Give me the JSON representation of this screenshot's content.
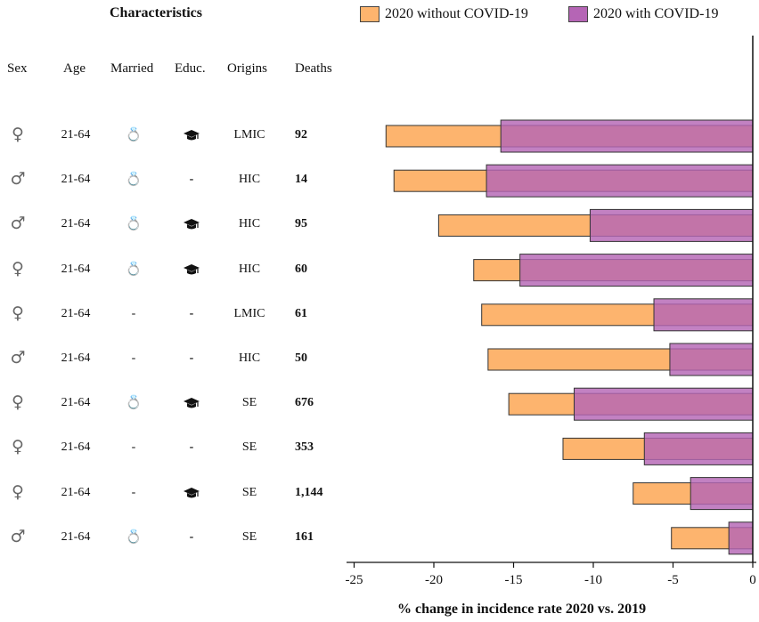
{
  "header": {
    "title": "Characteristics"
  },
  "columns": {
    "sex": "Sex",
    "age": "Age",
    "married": "Married",
    "educ": "Educ.",
    "origins": "Origins",
    "deaths": "Deaths"
  },
  "icons": {
    "female": "female-symbol-icon",
    "male": "male-symbol-icon",
    "married": "ring-icon",
    "educ": "graduation-cap-icon"
  },
  "rows": [
    {
      "sex": "♀",
      "sex_icon": "female-symbol-icon",
      "age": "21-64",
      "married": true,
      "educ": true,
      "origins": "LMIC",
      "deaths": "92"
    },
    {
      "sex": "♂",
      "sex_icon": "male-symbol-icon",
      "age": "21-64",
      "married": true,
      "educ": false,
      "origins": "HIC",
      "deaths": "14"
    },
    {
      "sex": "♂",
      "sex_icon": "male-symbol-icon",
      "age": "21-64",
      "married": true,
      "educ": true,
      "origins": "HIC",
      "deaths": "95"
    },
    {
      "sex": "♀",
      "sex_icon": "female-symbol-icon",
      "age": "21-64",
      "married": true,
      "educ": true,
      "origins": "HIC",
      "deaths": "60"
    },
    {
      "sex": "♀",
      "sex_icon": "female-symbol-icon",
      "age": "21-64",
      "married": false,
      "educ": false,
      "origins": "LMIC",
      "deaths": "61"
    },
    {
      "sex": "♂",
      "sex_icon": "male-symbol-icon",
      "age": "21-64",
      "married": false,
      "educ": false,
      "origins": "HIC",
      "deaths": "50"
    },
    {
      "sex": "♀",
      "sex_icon": "female-symbol-icon",
      "age": "21-64",
      "married": true,
      "educ": true,
      "origins": "SE",
      "deaths": "676"
    },
    {
      "sex": "♀",
      "sex_icon": "female-symbol-icon",
      "age": "21-64",
      "married": false,
      "educ": false,
      "origins": "SE",
      "deaths": "353"
    },
    {
      "sex": "♀",
      "sex_icon": "female-symbol-icon",
      "age": "21-64",
      "married": false,
      "educ": true,
      "origins": "SE",
      "deaths": "1,144"
    },
    {
      "sex": "♂",
      "sex_icon": "male-symbol-icon",
      "age": "21-64",
      "married": true,
      "educ": false,
      "origins": "SE",
      "deaths": "161"
    }
  ],
  "chart_data": {
    "type": "bar",
    "orientation": "horizontal",
    "xlabel": "% change in incidence rate 2020 vs. 2019",
    "xlim": [
      -26,
      0
    ],
    "xticks": [
      -25,
      -20,
      -15,
      -10,
      -5,
      0
    ],
    "grid": false,
    "legend_position": "top",
    "series": [
      {
        "name": "2020 without COVID-19",
        "color": "#FDB46E",
        "values": [
          -23.0,
          -22.5,
          -19.7,
          -17.5,
          -17.0,
          -16.6,
          -15.3,
          -11.9,
          -7.5,
          -5.1
        ]
      },
      {
        "name": "2020 with COVID-19",
        "color": "#B565B5",
        "values": [
          -15.8,
          -16.7,
          -10.2,
          -14.6,
          -6.2,
          -5.2,
          -11.2,
          -6.8,
          -3.9,
          -1.5
        ]
      }
    ]
  }
}
